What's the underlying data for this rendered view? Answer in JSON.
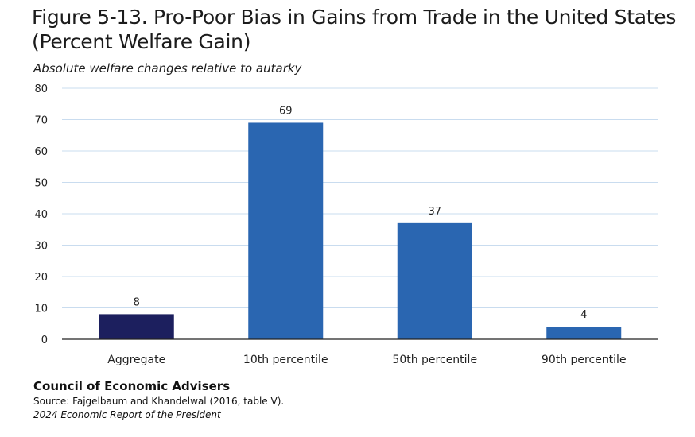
{
  "title": "Figure 5-13. Pro-Poor Bias in Gains from Trade in the United States (Percent Welfare Gain)",
  "subtitle": "Absolute welfare changes relative to autarky",
  "footer": {
    "organization": "Council of Economic Advisers",
    "source": "Source: Fajgelbaum and Khandelwal (2016, table V).",
    "publication": "2024 Economic Report of the President"
  },
  "colors": {
    "aggregate_bar": "#1c1f5e",
    "percentile_bar": "#2a66b1",
    "grid": "#c9dcef",
    "axis": "#222222"
  },
  "chart_data": {
    "type": "bar",
    "categories": [
      "Aggregate",
      "10th percentile",
      "50th percentile",
      "90th percentile"
    ],
    "values": [
      8,
      69,
      37,
      4
    ],
    "data_labels": [
      "8",
      "69",
      "37",
      "4"
    ],
    "ylim": [
      0,
      80
    ],
    "yticks": [
      0,
      10,
      20,
      30,
      40,
      50,
      60,
      70,
      80
    ],
    "grid": true,
    "xlabel": "",
    "ylabel": ""
  }
}
